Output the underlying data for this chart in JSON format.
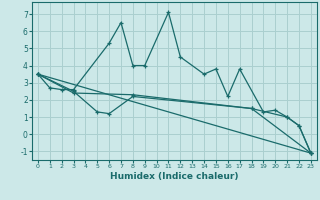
{
  "xlabel": "Humidex (Indice chaleur)",
  "bg_color": "#cce8e8",
  "line_color": "#1a6b6b",
  "grid_color": "#aacfcf",
  "xlim": [
    -0.5,
    23.5
  ],
  "ylim": [
    -1.5,
    7.7
  ],
  "xticks": [
    0,
    1,
    2,
    3,
    4,
    5,
    6,
    7,
    8,
    9,
    10,
    11,
    12,
    13,
    14,
    15,
    16,
    17,
    18,
    19,
    20,
    21,
    22,
    23
  ],
  "yticks": [
    -1,
    0,
    1,
    2,
    3,
    4,
    5,
    6,
    7
  ],
  "lines": [
    {
      "x": [
        0,
        1,
        2,
        3,
        6,
        7,
        8,
        9,
        11,
        12,
        14,
        15,
        16,
        17,
        19,
        20,
        21,
        22,
        23
      ],
      "y": [
        3.5,
        2.7,
        2.6,
        2.6,
        5.3,
        6.5,
        4.0,
        4.0,
        7.1,
        4.5,
        3.5,
        3.8,
        2.2,
        3.8,
        1.3,
        1.4,
        1.0,
        0.5,
        -1.1
      ]
    },
    {
      "x": [
        0,
        3,
        5,
        6,
        8,
        18,
        21,
        22,
        23
      ],
      "y": [
        3.5,
        2.5,
        1.3,
        1.2,
        2.2,
        1.5,
        1.0,
        0.5,
        -1.1
      ]
    },
    {
      "x": [
        0,
        3,
        8,
        18,
        23
      ],
      "y": [
        3.5,
        2.4,
        2.3,
        1.5,
        -1.1
      ]
    },
    {
      "x": [
        0,
        23
      ],
      "y": [
        3.5,
        -1.1
      ]
    }
  ]
}
